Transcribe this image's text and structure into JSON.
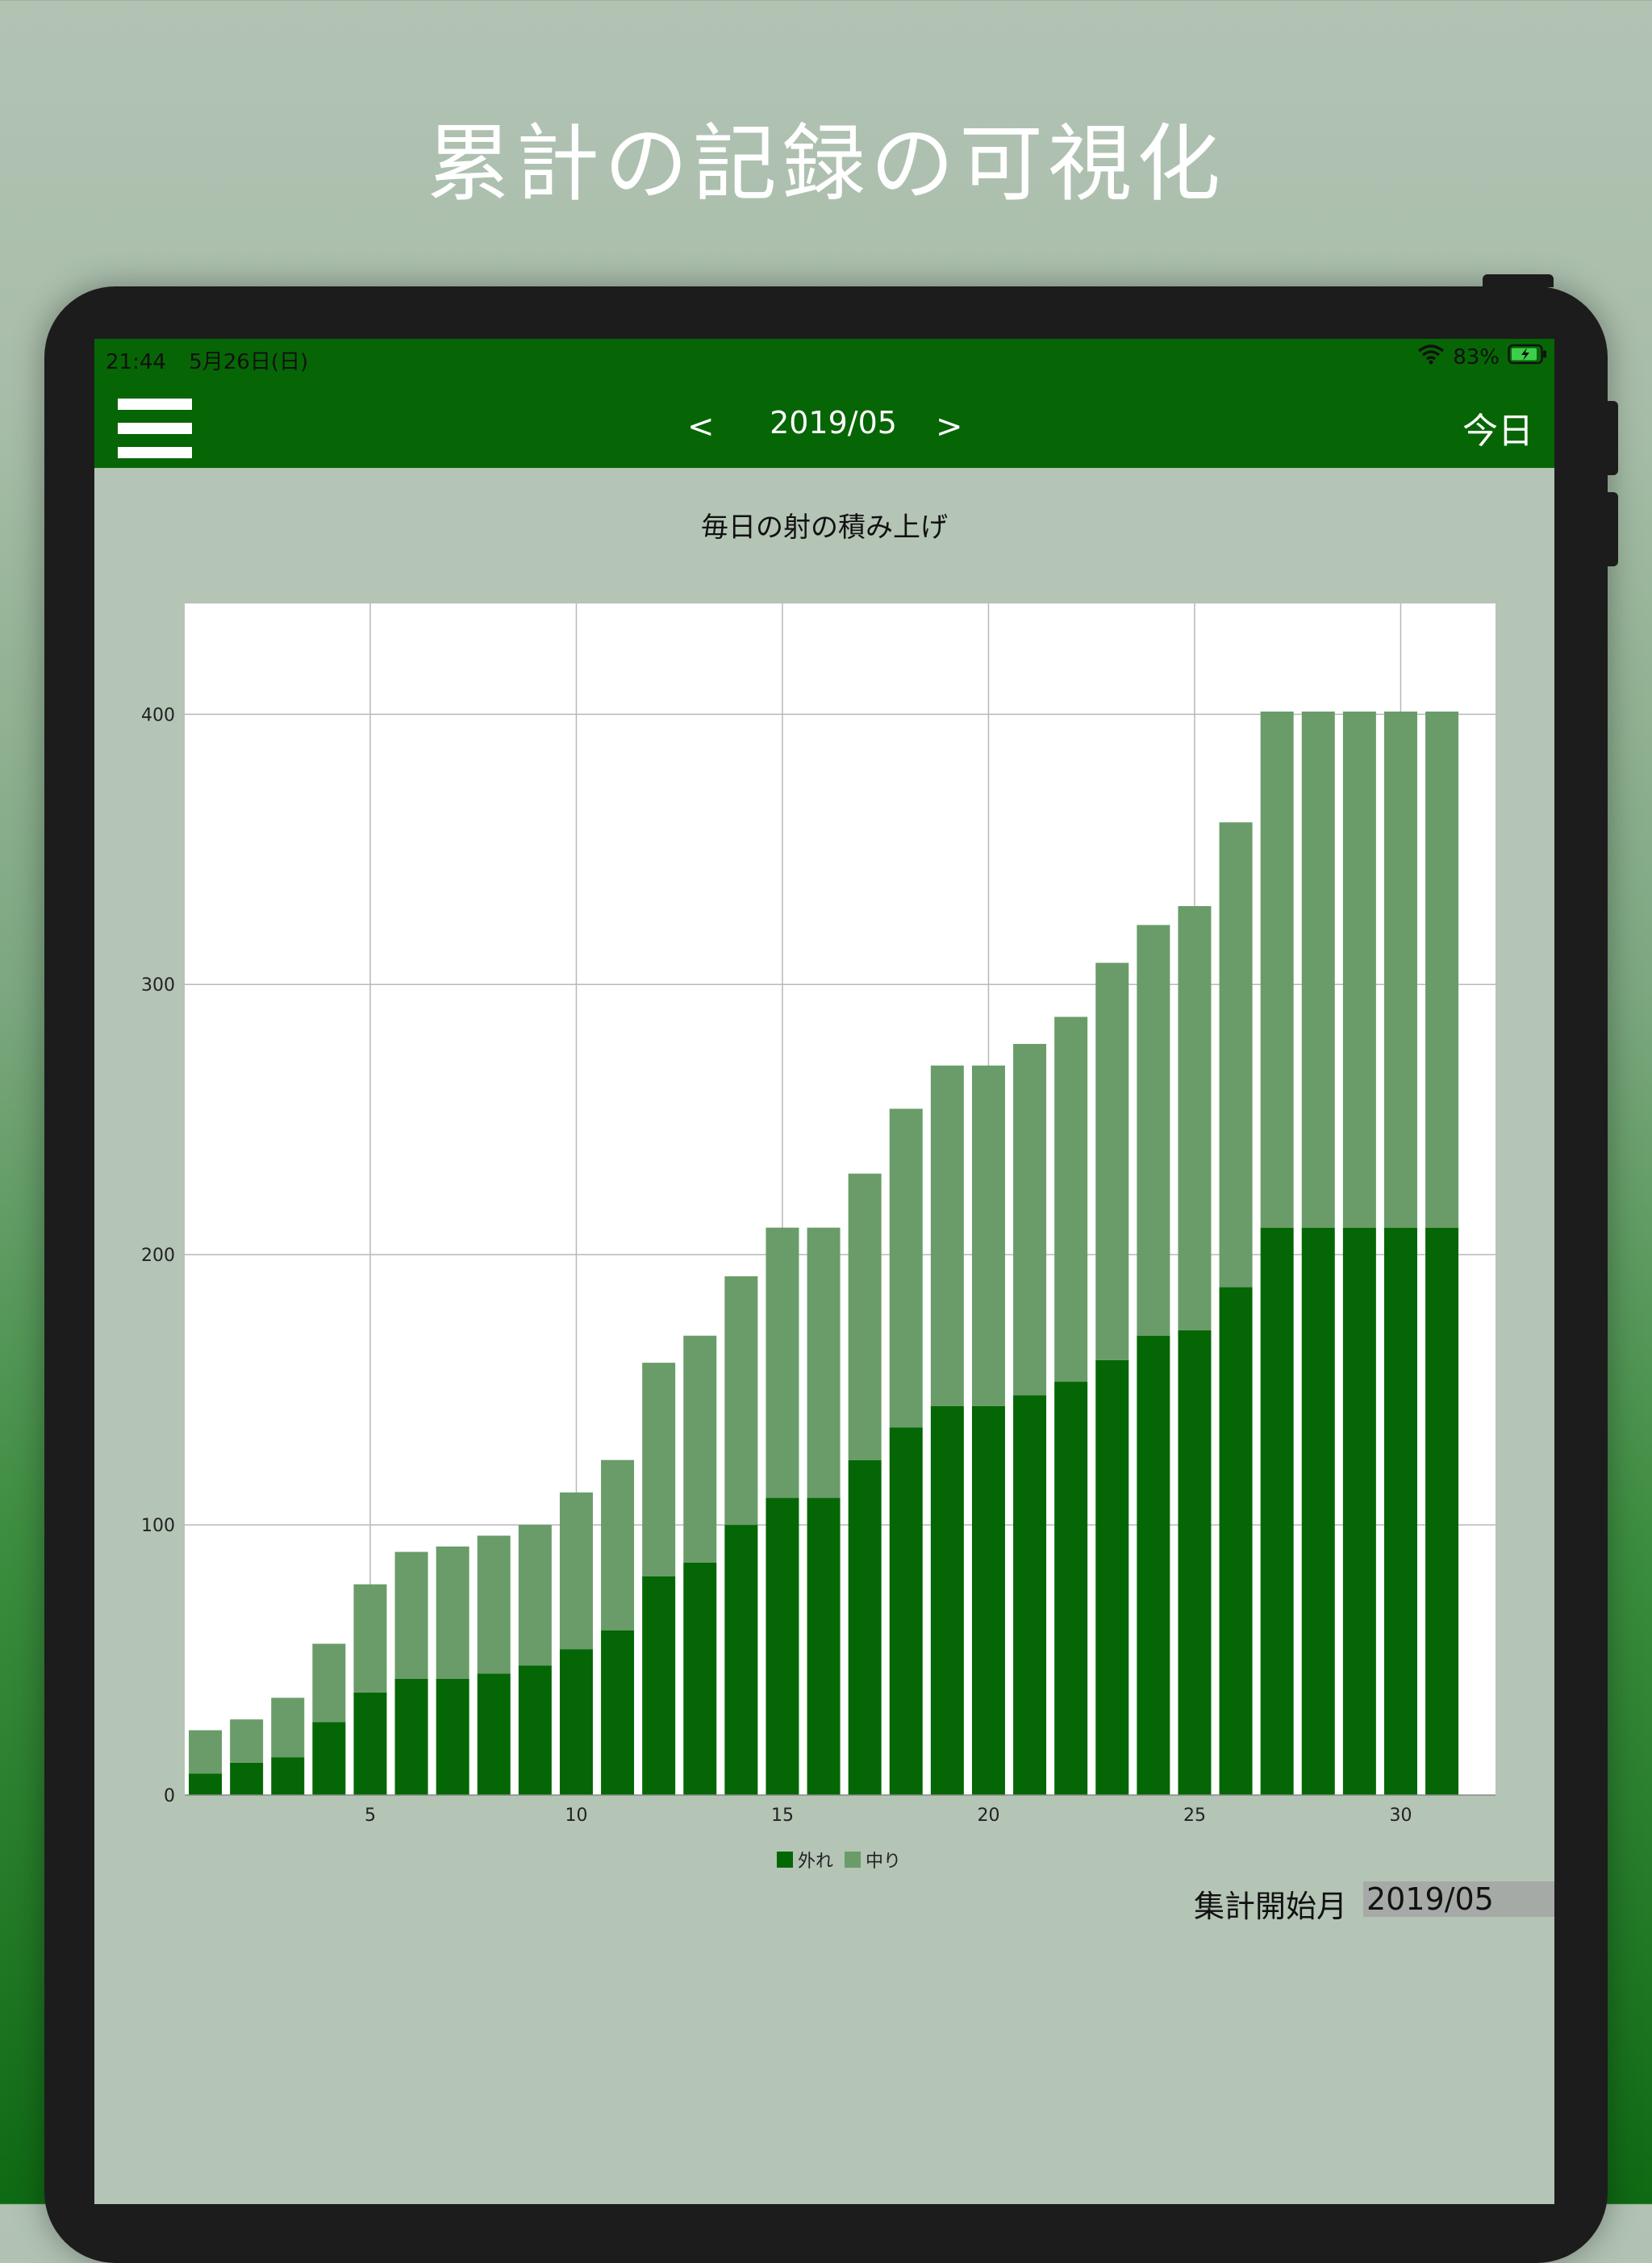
{
  "headline": "累計の記録の可視化",
  "status": {
    "time": "21:44",
    "date": "5月26日(日)",
    "battery": "83%"
  },
  "nav": {
    "prev": "<",
    "month": "2019/05",
    "next": ">",
    "today": "今日"
  },
  "colors": {
    "miss": "#056605",
    "hit": "#699c69",
    "bar": "#066605"
  },
  "chart_data": {
    "type": "bar",
    "stacked": true,
    "title": "毎日の射の積み上げ",
    "x": [
      1,
      2,
      3,
      4,
      5,
      6,
      7,
      8,
      9,
      10,
      11,
      12,
      13,
      14,
      15,
      16,
      17,
      18,
      19,
      20,
      21,
      22,
      23,
      24,
      25,
      26,
      27,
      28,
      29,
      30,
      31
    ],
    "series": [
      {
        "name": "外れ",
        "color": "#056605",
        "values": [
          8,
          12,
          14,
          27,
          38,
          43,
          43,
          45,
          48,
          54,
          61,
          81,
          86,
          100,
          110,
          110,
          124,
          136,
          144,
          144,
          148,
          153,
          161,
          170,
          172,
          188,
          210,
          210,
          210,
          210,
          210
        ]
      },
      {
        "name": "中り",
        "color": "#699c69",
        "values": [
          16,
          16,
          22,
          29,
          40,
          47,
          49,
          51,
          52,
          58,
          63,
          79,
          84,
          92,
          100,
          100,
          106,
          118,
          126,
          126,
          130,
          135,
          147,
          152,
          157,
          172,
          191,
          191,
          191,
          191,
          191
        ]
      }
    ],
    "xticks": [
      5,
      10,
      15,
      20,
      25,
      30
    ],
    "yticks": [
      0,
      100,
      200,
      300,
      400
    ],
    "xlim": [
      0.5,
      32.3
    ],
    "ylim": [
      0,
      441
    ],
    "grid": true,
    "legend": "bottom"
  },
  "start": {
    "label": "集計開始月",
    "value": "2019/05"
  }
}
